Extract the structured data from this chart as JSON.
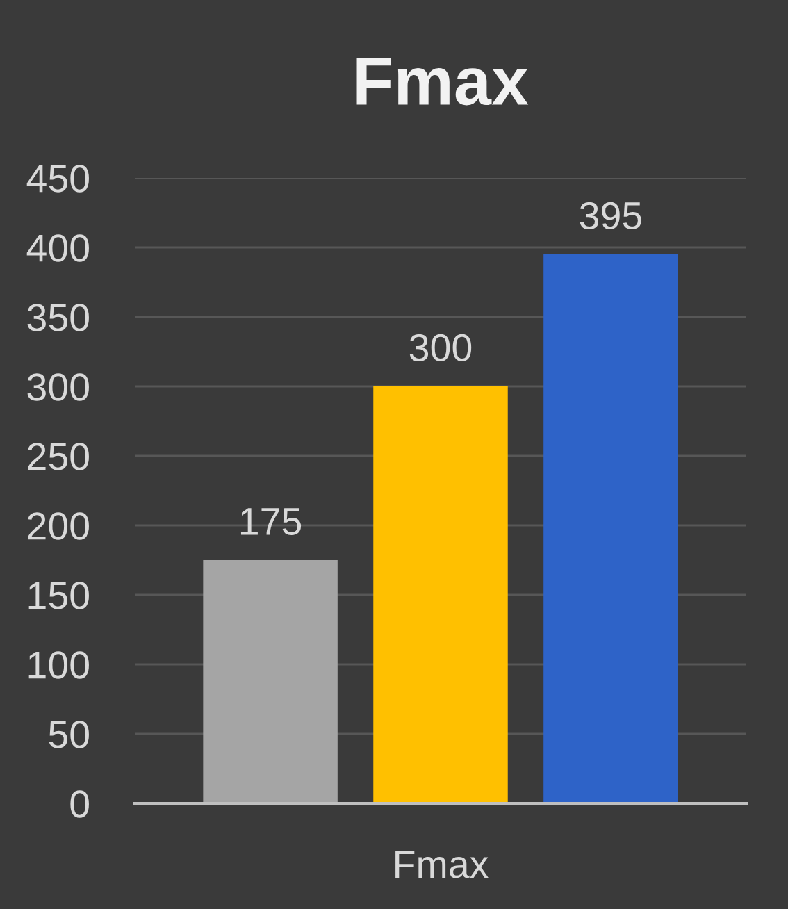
{
  "chart_data": {
    "type": "bar",
    "title": "Fmax",
    "categories": [
      "Fmax"
    ],
    "series": [
      {
        "color": "#a5a5a5",
        "values": [
          175
        ]
      },
      {
        "color": "#ffc000",
        "values": [
          300
        ]
      },
      {
        "color": "#2e63c8",
        "values": [
          395
        ]
      }
    ],
    "ylim": [
      0,
      450
    ],
    "yticks": [
      0,
      50,
      100,
      150,
      200,
      250,
      300,
      350,
      400,
      450
    ],
    "grid": "y",
    "data_labels": true
  }
}
